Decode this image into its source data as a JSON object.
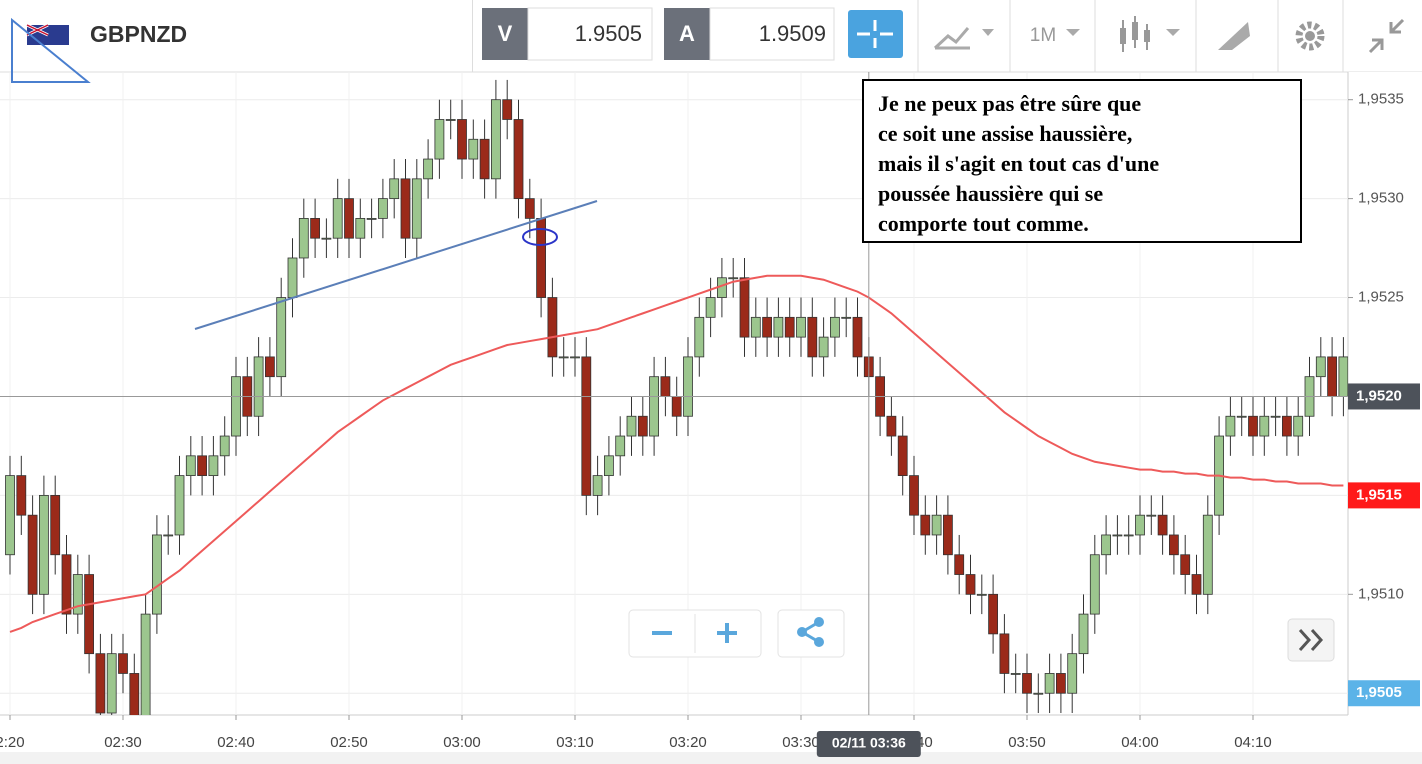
{
  "toolbar": {
    "symbol": "GBPNZD",
    "bid_label": "V",
    "bid": 1.9505,
    "ask_label": "A",
    "ask": 1.9509,
    "timeframe": "1M"
  },
  "annotation": {
    "lines": [
      "Je ne peux pas être sûre que",
      "ce soit une assise haussière,",
      "mais il s'agit en tout cas d'une",
      "poussée haussière qui se",
      "comporte tout comme."
    ]
  },
  "chart_data": {
    "type": "candlestick",
    "up_color": "#9cc68e",
    "down_color": "#9b2a1a",
    "categories": [
      "2:20",
      null,
      null,
      null,
      null,
      null,
      null,
      null,
      null,
      null,
      "02:30",
      null,
      null,
      null,
      null,
      null,
      null,
      null,
      null,
      null,
      "02:40",
      null,
      null,
      null,
      null,
      null,
      null,
      null,
      null,
      null,
      "02:50",
      null,
      null,
      null,
      null,
      null,
      null,
      null,
      null,
      null,
      "03:00",
      null,
      null,
      null,
      null,
      null,
      null,
      null,
      null,
      null,
      "03:10",
      null,
      null,
      null,
      null,
      null,
      null,
      null,
      null,
      null,
      "03:20",
      null,
      null,
      null,
      null,
      null,
      null,
      null,
      null,
      null,
      "03:30",
      null,
      null,
      null,
      null,
      null,
      null,
      null,
      null,
      null,
      "03:40",
      null,
      null,
      null,
      null,
      null,
      null,
      null,
      null,
      null,
      "03:50",
      null,
      null,
      null,
      null,
      null,
      null,
      null,
      null,
      null,
      "04:00",
      null,
      null,
      null,
      null,
      null,
      null,
      null,
      null,
      null,
      "04:10",
      null,
      null,
      null,
      null,
      null,
      null,
      null,
      null
    ],
    "open": [
      1.9512,
      1.9516,
      1.9514,
      1.951,
      1.9515,
      1.9512,
      1.9509,
      1.9511,
      1.9507,
      1.9504,
      1.9507,
      1.9506,
      1.9503,
      1.9509,
      1.9513,
      1.9513,
      1.9516,
      1.9517,
      1.9516,
      1.9517,
      1.9518,
      1.9521,
      1.9519,
      1.9522,
      1.9521,
      1.9525,
      1.9527,
      1.9529,
      1.9528,
      1.9528,
      1.953,
      1.9528,
      1.9529,
      1.9529,
      1.953,
      1.9531,
      1.9528,
      1.9531,
      1.9532,
      1.9534,
      1.9534,
      1.9532,
      1.9533,
      1.9531,
      1.9535,
      1.9534,
      1.953,
      1.9529,
      1.9525,
      1.9522,
      1.9522,
      1.9522,
      1.9515,
      1.9516,
      1.9517,
      1.9518,
      1.9519,
      1.9518,
      1.9521,
      1.952,
      1.9519,
      1.9522,
      1.9524,
      1.9525,
      1.9526,
      1.9526,
      1.9523,
      1.9524,
      1.9523,
      1.9524,
      1.9523,
      1.9524,
      1.9522,
      1.9523,
      1.9524,
      1.9524,
      1.9522,
      1.9521,
      1.9519,
      1.9518,
      1.9516,
      1.9514,
      1.9513,
      1.9514,
      1.9512,
      1.9511,
      1.951,
      1.951,
      1.9508,
      1.9506,
      1.9506,
      1.9505,
      1.9505,
      1.9506,
      1.9505,
      1.9507,
      1.9509,
      1.9512,
      1.9513,
      1.9513,
      1.9513,
      1.9514,
      1.9514,
      1.9513,
      1.9512,
      1.9511,
      1.951,
      1.9514,
      1.9518,
      1.9519,
      1.9519,
      1.9518,
      1.9519,
      1.9519,
      1.9518,
      1.9519,
      1.9521,
      1.9522,
      1.952
    ],
    "high": [
      1.9517,
      1.9517,
      1.9515,
      1.9516,
      1.9516,
      1.9513,
      1.9512,
      1.9512,
      1.9508,
      1.9508,
      1.9508,
      1.9507,
      1.951,
      1.9514,
      1.9514,
      1.9517,
      1.9518,
      1.9518,
      1.9518,
      1.9519,
      1.9522,
      1.9522,
      1.9523,
      1.9523,
      1.9526,
      1.9528,
      1.953,
      1.953,
      1.9529,
      1.9531,
      1.9531,
      1.953,
      1.953,
      1.9531,
      1.9532,
      1.9532,
      1.9532,
      1.9533,
      1.9535,
      1.9535,
      1.9535,
      1.9534,
      1.9534,
      1.9536,
      1.9536,
      1.9535,
      1.9531,
      1.953,
      1.9526,
      1.9523,
      1.9523,
      1.9523,
      1.9517,
      1.9518,
      1.9519,
      1.952,
      1.952,
      1.9522,
      1.9522,
      1.9521,
      1.9523,
      1.9525,
      1.9526,
      1.9527,
      1.9527,
      1.9527,
      1.9525,
      1.9525,
      1.9525,
      1.9525,
      1.9525,
      1.9525,
      1.9524,
      1.9525,
      1.9525,
      1.9525,
      1.9523,
      1.9522,
      1.952,
      1.9519,
      1.9517,
      1.9515,
      1.9515,
      1.9515,
      1.9513,
      1.9512,
      1.9511,
      1.9511,
      1.9509,
      1.9507,
      1.9507,
      1.9506,
      1.9507,
      1.9507,
      1.9508,
      1.951,
      1.9513,
      1.9514,
      1.9514,
      1.9514,
      1.9515,
      1.9515,
      1.9515,
      1.9514,
      1.9513,
      1.9512,
      1.9515,
      1.9519,
      1.952,
      1.952,
      1.952,
      1.952,
      1.952,
      1.952,
      1.952,
      1.9522,
      1.9523,
      1.9523,
      1.9523
    ],
    "low": [
      1.9511,
      1.9513,
      1.9509,
      1.9509,
      1.9511,
      1.9508,
      1.9508,
      1.9506,
      1.9503,
      1.9503,
      1.9505,
      1.9502,
      1.9502,
      1.9508,
      1.9512,
      1.9512,
      1.9515,
      1.9515,
      1.9515,
      1.9516,
      1.9517,
      1.9518,
      1.9518,
      1.952,
      1.952,
      1.9524,
      1.9526,
      1.9527,
      1.9527,
      1.9527,
      1.9527,
      1.9527,
      1.9528,
      1.9528,
      1.9529,
      1.9527,
      1.9527,
      1.953,
      1.9531,
      1.9533,
      1.9531,
      1.9531,
      1.953,
      1.953,
      1.9533,
      1.9529,
      1.9528,
      1.9524,
      1.9521,
      1.9521,
      1.9521,
      1.9514,
      1.9514,
      1.9515,
      1.9516,
      1.9517,
      1.9517,
      1.9517,
      1.9519,
      1.9518,
      1.9518,
      1.9521,
      1.9523,
      1.9524,
      1.9525,
      1.9522,
      1.9522,
      1.9522,
      1.9522,
      1.9522,
      1.9522,
      1.9521,
      1.9521,
      1.9522,
      1.9523,
      1.9521,
      1.952,
      1.9518,
      1.9517,
      1.9515,
      1.9513,
      1.9512,
      1.9512,
      1.9511,
      1.951,
      1.9509,
      1.9509,
      1.9507,
      1.9505,
      1.9505,
      1.9504,
      1.9504,
      1.9504,
      1.9504,
      1.9504,
      1.9506,
      1.9508,
      1.9511,
      1.9512,
      1.9512,
      1.9512,
      1.9513,
      1.9512,
      1.9511,
      1.951,
      1.9509,
      1.9509,
      1.9513,
      1.9517,
      1.9518,
      1.9517,
      1.9517,
      1.9518,
      1.9517,
      1.9517,
      1.9518,
      1.952,
      1.9519,
      1.9519
    ],
    "close": [
      1.9516,
      1.9514,
      1.951,
      1.9515,
      1.9512,
      1.9509,
      1.9511,
      1.9507,
      1.9504,
      1.9507,
      1.9506,
      1.9503,
      1.9509,
      1.9513,
      1.9513,
      1.9516,
      1.9517,
      1.9516,
      1.9517,
      1.9518,
      1.9521,
      1.9519,
      1.9522,
      1.9521,
      1.9525,
      1.9527,
      1.9529,
      1.9528,
      1.9528,
      1.953,
      1.9528,
      1.9529,
      1.9529,
      1.953,
      1.9531,
      1.9528,
      1.9531,
      1.9532,
      1.9534,
      1.9534,
      1.9532,
      1.9533,
      1.9531,
      1.9535,
      1.9534,
      1.953,
      1.9529,
      1.9525,
      1.9522,
      1.9522,
      1.9522,
      1.9515,
      1.9516,
      1.9517,
      1.9518,
      1.9519,
      1.9518,
      1.9521,
      1.952,
      1.9519,
      1.9522,
      1.9524,
      1.9525,
      1.9526,
      1.9526,
      1.9523,
      1.9524,
      1.9523,
      1.9524,
      1.9523,
      1.9524,
      1.9522,
      1.9523,
      1.9524,
      1.9524,
      1.9522,
      1.9521,
      1.9519,
      1.9518,
      1.9516,
      1.9514,
      1.9513,
      1.9514,
      1.9512,
      1.9511,
      1.951,
      1.951,
      1.9508,
      1.9506,
      1.9506,
      1.9505,
      1.9505,
      1.9506,
      1.9505,
      1.9507,
      1.9509,
      1.9512,
      1.9513,
      1.9513,
      1.9513,
      1.9514,
      1.9514,
      1.9513,
      1.9512,
      1.9511,
      1.951,
      1.9514,
      1.9518,
      1.9519,
      1.9519,
      1.9518,
      1.9519,
      1.9519,
      1.9518,
      1.9519,
      1.9521,
      1.9522,
      1.952,
      1.9522
    ],
    "moving_average": {
      "color": "#ee5a5a",
      "values": [
        1.95081,
        1.95083,
        1.95086,
        1.95088,
        1.9509,
        1.95092,
        1.95094,
        1.95095,
        1.95096,
        1.95097,
        1.95098,
        1.95099,
        1.951,
        1.95104,
        1.95108,
        1.95112,
        1.95117,
        1.95122,
        1.95127,
        1.95132,
        1.95137,
        1.95142,
        1.95147,
        1.95152,
        1.95157,
        1.95162,
        1.95167,
        1.95172,
        1.95177,
        1.95182,
        1.95186,
        1.9519,
        1.95194,
        1.95198,
        1.95201,
        1.95204,
        1.95207,
        1.9521,
        1.95213,
        1.95216,
        1.95218,
        1.9522,
        1.95222,
        1.95224,
        1.95226,
        1.95227,
        1.95228,
        1.95229,
        1.9523,
        1.95231,
        1.95232,
        1.95233,
        1.95234,
        1.95236,
        1.95238,
        1.9524,
        1.95242,
        1.95244,
        1.95246,
        1.95248,
        1.9525,
        1.95252,
        1.95254,
        1.95256,
        1.95258,
        1.95259,
        1.9526,
        1.95261,
        1.95261,
        1.95261,
        1.95261,
        1.9526,
        1.95259,
        1.95257,
        1.95255,
        1.95253,
        1.9525,
        1.95246,
        1.95242,
        1.95237,
        1.95232,
        1.95227,
        1.95222,
        1.95217,
        1.95212,
        1.95207,
        1.95202,
        1.95197,
        1.95192,
        1.95188,
        1.95184,
        1.9518,
        1.95177,
        1.95174,
        1.95171,
        1.95169,
        1.95167,
        1.95166,
        1.95165,
        1.95164,
        1.95163,
        1.95163,
        1.95162,
        1.95162,
        1.95161,
        1.95161,
        1.9516,
        1.9516,
        1.95159,
        1.95159,
        1.95158,
        1.95158,
        1.95157,
        1.95157,
        1.95156,
        1.95156,
        1.95156,
        1.95155,
        1.95155
      ]
    },
    "ylim": [
      1.95039,
      1.95364
    ],
    "yticks": [
      {
        "value": 1.9505,
        "label": "1,9505"
      },
      {
        "value": 1.951,
        "label": "1,9510"
      },
      {
        "value": 1.9515,
        "label": "1,9515"
      },
      {
        "value": 1.952,
        "label": "1,9520"
      },
      {
        "value": 1.9525,
        "label": "1,9525"
      },
      {
        "value": 1.953,
        "label": "1,9530"
      },
      {
        "value": 1.9535,
        "label": "1,9535"
      }
    ],
    "grid": true,
    "crosshair": {
      "x": 76,
      "label": "02/11 03:36",
      "y": 1.952,
      "y_label": "1,9520"
    },
    "price_tags": [
      {
        "value": 1.9515,
        "label": "1,9515",
        "color": "#ff1a1a"
      },
      {
        "value": 1.9505,
        "label": "1,9505",
        "color": "#5bb3e8"
      }
    ]
  }
}
